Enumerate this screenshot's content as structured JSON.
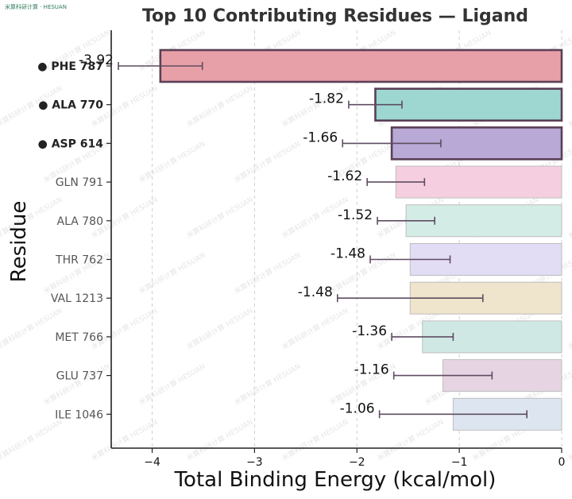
{
  "watermark": "米算科研计算 · HESUAN",
  "background_watermark": "米算科研计算 HESUAN",
  "chart_data": {
    "type": "bar",
    "orientation": "horizontal",
    "title": "Top 10 Contributing Residues — Ligand",
    "xlabel": "Total Binding Energy (kcal/mol)",
    "ylabel": "Residue",
    "xlim": [
      -4.4,
      0
    ],
    "xticks": [
      -4,
      -3,
      -2,
      -1,
      0
    ],
    "xtick_labels": [
      "−4",
      "−3",
      "−2",
      "−1",
      "0"
    ],
    "grid": "x-dashed",
    "categories": [
      "PHE 787",
      "ALA 770",
      "ASP 614",
      "GLN 791",
      "ALA 780",
      "THR 762",
      "VAL 1213",
      "MET 766",
      "GLU 737",
      "ILE 1046"
    ],
    "values": [
      -3.92,
      -1.82,
      -1.66,
      -1.62,
      -1.52,
      -1.48,
      -1.48,
      -1.36,
      -1.16,
      -1.06
    ],
    "value_labels": [
      "-3.92",
      "-1.82",
      "-1.66",
      "-1.62",
      "-1.52",
      "-1.48",
      "-1.48",
      "-1.36",
      "-1.16",
      "-1.06"
    ],
    "error_ranges": [
      [
        -4.33,
        -3.51
      ],
      [
        -2.08,
        -1.56
      ],
      [
        -2.14,
        -1.18
      ],
      [
        -1.9,
        -1.34
      ],
      [
        -1.8,
        -1.24
      ],
      [
        -1.87,
        -1.09
      ],
      [
        -2.19,
        -0.77
      ],
      [
        -1.66,
        -1.06
      ],
      [
        -1.64,
        -0.68
      ],
      [
        -1.78,
        -0.34
      ]
    ],
    "highlighted": [
      true,
      true,
      true,
      false,
      false,
      false,
      false,
      false,
      false,
      false
    ],
    "highlight_marker": "●",
    "colors": [
      "#e8a0a8",
      "#9ed6d2",
      "#b8a9d6",
      "#f5cfe0",
      "#d4ece6",
      "#e2dcf4",
      "#efe4cc",
      "#cfe8e4",
      "#e6d4e2",
      "#dde6f0"
    ],
    "highlight_edge_color": "#5a4055",
    "errorbar_color": "#5f4c62"
  }
}
